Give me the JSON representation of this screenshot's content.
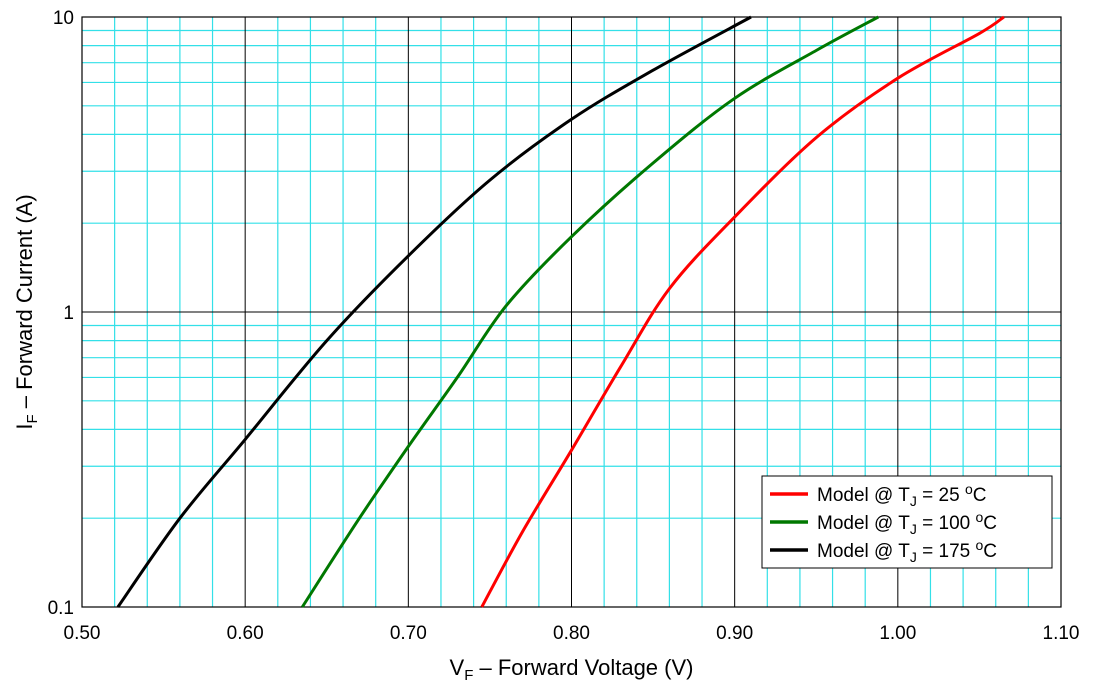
{
  "chart_data": {
    "type": "line",
    "x_scale": "linear",
    "y_scale": "log",
    "xlim": [
      0.5,
      1.1
    ],
    "ylim": [
      0.1,
      10
    ],
    "x_ticks": [
      0.5,
      0.6,
      0.7,
      0.8,
      0.9,
      1.0,
      1.1
    ],
    "x_tick_labels": [
      "0.50",
      "0.60",
      "0.70",
      "0.80",
      "0.90",
      "1.00",
      "1.10"
    ],
    "y_ticks": [
      0.1,
      1,
      10
    ],
    "y_tick_labels": [
      "0.1",
      "1",
      "10"
    ],
    "xlabel": {
      "main": "V",
      "sub": "F",
      "rest": " – Forward Voltage (V)"
    },
    "ylabel": {
      "main": "I",
      "sub": "F",
      "rest": " – Forward Current (A)"
    },
    "grid": true,
    "legend_position": "bottom-right",
    "colors": {
      "major_grid": "#000000",
      "minor_grid": "#33e0e8"
    },
    "series": [
      {
        "name_prefix": "Model @ T",
        "name_sub": "J",
        "name_value": " = 25 ",
        "name_sup": "o",
        "name_unit": "C",
        "color": "#ff0000",
        "points": [
          [
            0.745,
            0.1
          ],
          [
            0.77,
            0.18
          ],
          [
            0.8,
            0.34
          ],
          [
            0.83,
            0.65
          ],
          [
            0.86,
            1.2
          ],
          [
            0.9,
            2.1
          ],
          [
            0.95,
            3.9
          ],
          [
            1.0,
            6.2
          ],
          [
            1.05,
            8.8
          ],
          [
            1.065,
            10
          ]
        ]
      },
      {
        "name_prefix": "Model @ T",
        "name_sub": "J",
        "name_value": " = 100 ",
        "name_sup": "o",
        "name_unit": "C",
        "color": "#007800",
        "points": [
          [
            0.635,
            0.1
          ],
          [
            0.67,
            0.2
          ],
          [
            0.7,
            0.35
          ],
          [
            0.73,
            0.6
          ],
          [
            0.76,
            1.05
          ],
          [
            0.8,
            1.8
          ],
          [
            0.85,
            3.2
          ],
          [
            0.9,
            5.3
          ],
          [
            0.95,
            7.7
          ],
          [
            0.988,
            10
          ]
        ]
      },
      {
        "name_prefix": "Model @ T",
        "name_sub": "J",
        "name_value": " = 175 ",
        "name_sup": "o",
        "name_unit": "C",
        "color": "#000000",
        "points": [
          [
            0.522,
            0.1
          ],
          [
            0.56,
            0.2
          ],
          [
            0.6,
            0.37
          ],
          [
            0.65,
            0.8
          ],
          [
            0.7,
            1.55
          ],
          [
            0.75,
            2.8
          ],
          [
            0.8,
            4.5
          ],
          [
            0.85,
            6.6
          ],
          [
            0.91,
            10
          ]
        ]
      }
    ]
  }
}
